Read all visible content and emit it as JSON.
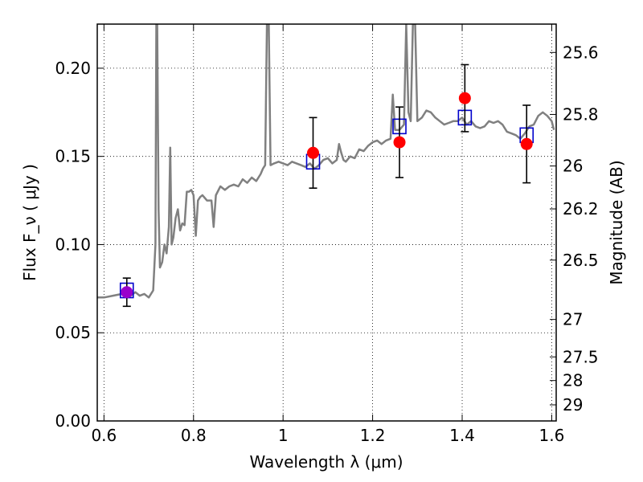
{
  "chart_data": {
    "type": "scatter",
    "xlabel": "Wavelength  λ (μm)",
    "ylabel": "Flux  F_ν  ( μJy )",
    "y2label": "Magnitude (AB)",
    "xlim": [
      0.585,
      1.61
    ],
    "ylim": [
      0.0,
      0.225
    ],
    "x_ticks": [
      0.6,
      0.8,
      1.0,
      1.2,
      1.4,
      1.6
    ],
    "x_tick_labels": [
      "0.6",
      "0.8",
      "1",
      "1.2",
      "1.4",
      "1.6"
    ],
    "y_ticks": [
      0.0,
      0.05,
      0.1,
      0.15,
      0.2
    ],
    "y_tick_labels": [
      "0.00",
      "0.05",
      "0.10",
      "0.15",
      "0.20"
    ],
    "mag_ticks": [
      25.6,
      25.8,
      26,
      26.2,
      26.5,
      27,
      27.5,
      28,
      29
    ],
    "mag_tick_labels": [
      "25.6",
      "25.8",
      "26",
      "26.2",
      "26.5",
      "27",
      "27.5",
      "28",
      "29"
    ],
    "grid": true,
    "legend": "none",
    "colors": {
      "spectrum": "#808080",
      "observed": "#ff0000",
      "model": "#0000cc",
      "errorbar": "#000000",
      "first_point": "#9900cc"
    },
    "series": [
      {
        "kind": "line",
        "points": [
          [
            0.585,
            0.07
          ],
          [
            0.6,
            0.07
          ],
          [
            0.62,
            0.071
          ],
          [
            0.64,
            0.072
          ],
          [
            0.66,
            0.071
          ],
          [
            0.67,
            0.073
          ],
          [
            0.68,
            0.071
          ],
          [
            0.69,
            0.072
          ],
          [
            0.7,
            0.07
          ],
          [
            0.71,
            0.074
          ],
          [
            0.715,
            0.1
          ],
          [
            0.717,
            0.225
          ],
          [
            0.719,
            0.225
          ],
          [
            0.722,
            0.12
          ],
          [
            0.725,
            0.087
          ],
          [
            0.73,
            0.09
          ],
          [
            0.735,
            0.1
          ],
          [
            0.74,
            0.095
          ],
          [
            0.745,
            0.11
          ],
          [
            0.748,
            0.155
          ],
          [
            0.751,
            0.1
          ],
          [
            0.755,
            0.104
          ],
          [
            0.76,
            0.115
          ],
          [
            0.765,
            0.12
          ],
          [
            0.77,
            0.108
          ],
          [
            0.775,
            0.112
          ],
          [
            0.78,
            0.111
          ],
          [
            0.785,
            0.13
          ],
          [
            0.79,
            0.13
          ],
          [
            0.795,
            0.131
          ],
          [
            0.8,
            0.128
          ],
          [
            0.805,
            0.105
          ],
          [
            0.81,
            0.125
          ],
          [
            0.815,
            0.127
          ],
          [
            0.82,
            0.128
          ],
          [
            0.83,
            0.125
          ],
          [
            0.84,
            0.125
          ],
          [
            0.845,
            0.11
          ],
          [
            0.85,
            0.128
          ],
          [
            0.86,
            0.133
          ],
          [
            0.87,
            0.131
          ],
          [
            0.88,
            0.133
          ],
          [
            0.89,
            0.134
          ],
          [
            0.9,
            0.133
          ],
          [
            0.91,
            0.137
          ],
          [
            0.92,
            0.135
          ],
          [
            0.93,
            0.138
          ],
          [
            0.94,
            0.136
          ],
          [
            0.95,
            0.14
          ],
          [
            0.955,
            0.143
          ],
          [
            0.96,
            0.145
          ],
          [
            0.964,
            0.225
          ],
          [
            0.968,
            0.225
          ],
          [
            0.972,
            0.145
          ],
          [
            0.98,
            0.146
          ],
          [
            0.99,
            0.147
          ],
          [
            1.0,
            0.146
          ],
          [
            1.01,
            0.145
          ],
          [
            1.02,
            0.147
          ],
          [
            1.03,
            0.146
          ],
          [
            1.04,
            0.145
          ],
          [
            1.05,
            0.144
          ],
          [
            1.06,
            0.146
          ],
          [
            1.07,
            0.143
          ],
          [
            1.08,
            0.145
          ],
          [
            1.09,
            0.148
          ],
          [
            1.1,
            0.149
          ],
          [
            1.11,
            0.146
          ],
          [
            1.12,
            0.148
          ],
          [
            1.125,
            0.157
          ],
          [
            1.13,
            0.152
          ],
          [
            1.135,
            0.148
          ],
          [
            1.14,
            0.147
          ],
          [
            1.15,
            0.15
          ],
          [
            1.16,
            0.149
          ],
          [
            1.17,
            0.154
          ],
          [
            1.18,
            0.153
          ],
          [
            1.19,
            0.156
          ],
          [
            1.2,
            0.158
          ],
          [
            1.21,
            0.159
          ],
          [
            1.22,
            0.157
          ],
          [
            1.23,
            0.159
          ],
          [
            1.24,
            0.16
          ],
          [
            1.245,
            0.185
          ],
          [
            1.25,
            0.165
          ],
          [
            1.26,
            0.165
          ],
          [
            1.27,
            0.168
          ],
          [
            1.275,
            0.225
          ],
          [
            1.28,
            0.175
          ],
          [
            1.285,
            0.17
          ],
          [
            1.29,
            0.225
          ],
          [
            1.295,
            0.225
          ],
          [
            1.3,
            0.17
          ],
          [
            1.31,
            0.172
          ],
          [
            1.32,
            0.176
          ],
          [
            1.33,
            0.175
          ],
          [
            1.34,
            0.172
          ],
          [
            1.35,
            0.17
          ],
          [
            1.36,
            0.168
          ],
          [
            1.37,
            0.169
          ],
          [
            1.38,
            0.17
          ],
          [
            1.39,
            0.17
          ],
          [
            1.4,
            0.172
          ],
          [
            1.41,
            0.168
          ],
          [
            1.42,
            0.17
          ],
          [
            1.43,
            0.167
          ],
          [
            1.44,
            0.166
          ],
          [
            1.45,
            0.167
          ],
          [
            1.46,
            0.17
          ],
          [
            1.47,
            0.169
          ],
          [
            1.48,
            0.17
          ],
          [
            1.49,
            0.168
          ],
          [
            1.5,
            0.164
          ],
          [
            1.51,
            0.163
          ],
          [
            1.52,
            0.162
          ],
          [
            1.53,
            0.16
          ],
          [
            1.54,
            0.163
          ],
          [
            1.55,
            0.167
          ],
          [
            1.56,
            0.168
          ],
          [
            1.57,
            0.173
          ],
          [
            1.58,
            0.175
          ],
          [
            1.59,
            0.173
          ],
          [
            1.6,
            0.17
          ],
          [
            1.605,
            0.165
          ]
        ]
      },
      {
        "kind": "observed",
        "points": [
          {
            "x": 0.651,
            "y": 0.073,
            "err": 0.008
          },
          {
            "x": 1.067,
            "y": 0.152,
            "err": 0.02
          },
          {
            "x": 1.26,
            "y": 0.158,
            "err": 0.02
          },
          {
            "x": 1.406,
            "y": 0.183,
            "err": 0.019
          },
          {
            "x": 1.544,
            "y": 0.157,
            "err": 0.022
          }
        ]
      },
      {
        "kind": "model",
        "points": [
          {
            "x": 0.651,
            "y": 0.074
          },
          {
            "x": 1.067,
            "y": 0.147
          },
          {
            "x": 1.26,
            "y": 0.167
          },
          {
            "x": 1.406,
            "y": 0.172
          },
          {
            "x": 1.544,
            "y": 0.162
          }
        ]
      }
    ]
  }
}
